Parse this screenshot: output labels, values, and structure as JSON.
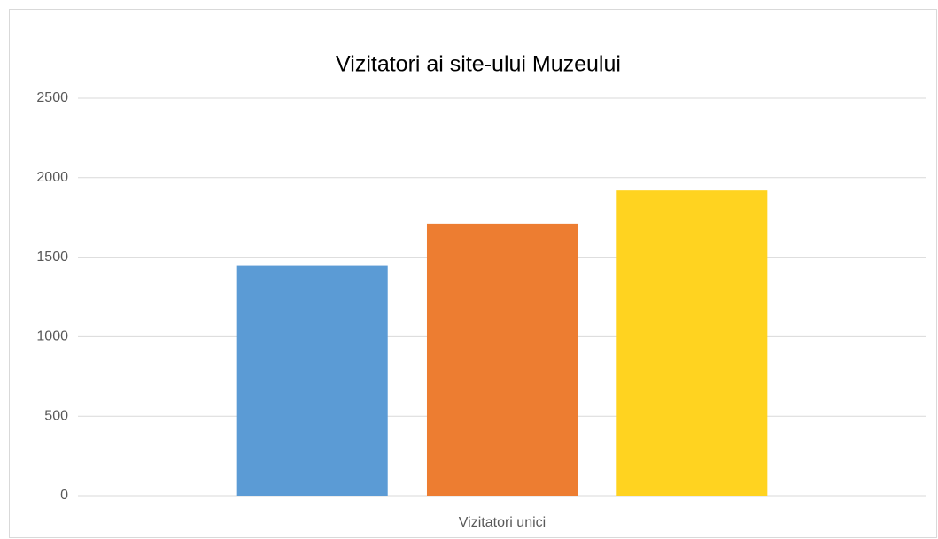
{
  "chart_data": {
    "type": "bar",
    "title": "Vizitatori ai site-ului Muzeului",
    "categories": [
      "Vizitatori unici"
    ],
    "series": [
      {
        "color": "#5b9bd5",
        "values": [
          1450
        ]
      },
      {
        "color": "#ed7d31",
        "values": [
          1710
        ]
      },
      {
        "color": "#ffd320",
        "values": [
          1920
        ]
      }
    ],
    "ylim": [
      0,
      2500
    ],
    "yticks": [
      0,
      500,
      1000,
      1500,
      2000,
      2500
    ],
    "grid": true
  }
}
